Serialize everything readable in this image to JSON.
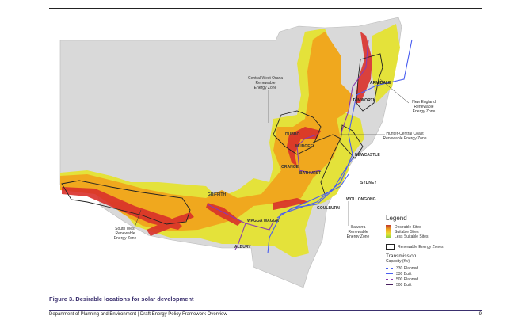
{
  "map": {
    "towns": [
      "ARMIDALE",
      "TAMWORTH",
      "DUBBO",
      "MUDGEE",
      "ORANGE",
      "BATHURST",
      "NEWCASTLE",
      "SYDNEY",
      "WOLLONGONG",
      "GOULBURN",
      "WAGGA WAGGA",
      "GRIFFITH",
      "ALBURY"
    ],
    "zones": {
      "central_west": [
        "Central West Orana",
        "Renewable",
        "Energy Zone"
      ],
      "new_england": [
        "New England",
        "Renewable",
        "Energy Zone"
      ],
      "hunter": [
        "Hunter-Central Coast",
        "Renewable Energy Zone"
      ],
      "south_west": [
        "South West",
        "Renewable",
        "Energy Zone"
      ],
      "illawarra": [
        "Illawarra",
        "Renewable",
        "Energy Zone"
      ]
    },
    "colors": {
      "desirable": "#d9302a",
      "suitable": "#f0a81e",
      "less_suitable": "#e8e432",
      "land": "#d9d9d9",
      "line_330": "#4a5ef0",
      "line_500": "#8a3bb0"
    }
  },
  "legend": {
    "title": "Legend",
    "sites": [
      "Desirable Sites",
      "Suitable Sites",
      "Less Suitable Sites"
    ],
    "zones_label": "Renewable Energy Zones",
    "transmission_title": "Transmission",
    "capacity_label": "Capacity (Kv)",
    "lines": [
      "330 Planned",
      "330 Built",
      "500 Planned",
      "500 Built"
    ]
  },
  "caption": "Figure 3. Desirable locations for solar development",
  "footer": {
    "text": "Department of Planning and Environment | Draft Energy Policy Framework Overview",
    "page": "9"
  }
}
